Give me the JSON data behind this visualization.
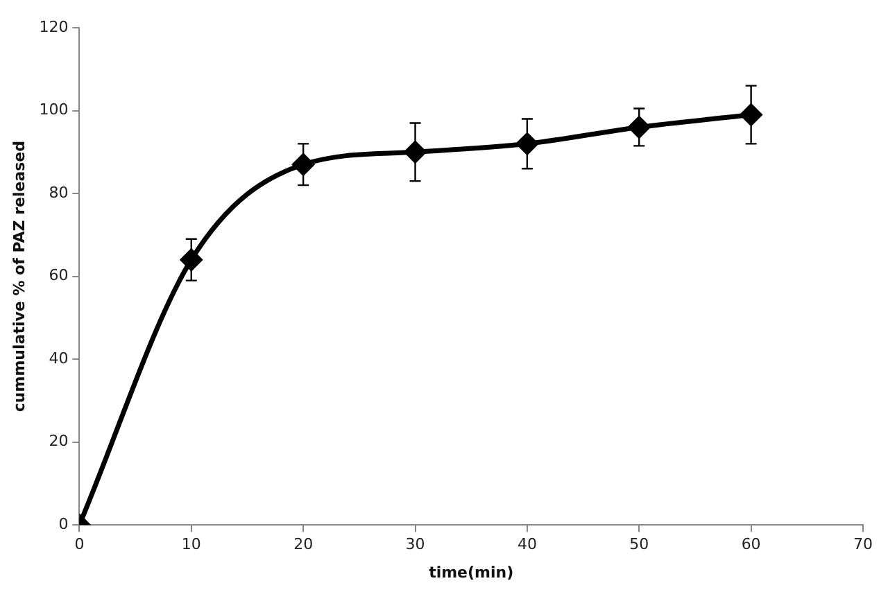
{
  "chart_data": {
    "type": "line",
    "xlabel": "time(min)",
    "ylabel": "cummulative % of PAZ released",
    "x": [
      0,
      10,
      20,
      30,
      40,
      50,
      60
    ],
    "series": [
      {
        "color": "#000000",
        "values": [
          0,
          64,
          87,
          90,
          92,
          96,
          99
        ],
        "errors": [
          null,
          5,
          5,
          7,
          6,
          4.5,
          7
        ]
      }
    ],
    "xlim": [
      0,
      70
    ],
    "xticks": [
      0,
      10,
      20,
      30,
      40,
      50,
      60,
      70
    ],
    "ylim": [
      0,
      120
    ],
    "yticks": [
      0,
      20,
      40,
      60,
      80,
      100,
      120
    ],
    "grid": false,
    "legend": false,
    "marker": "diamond",
    "line_style": "solid"
  }
}
